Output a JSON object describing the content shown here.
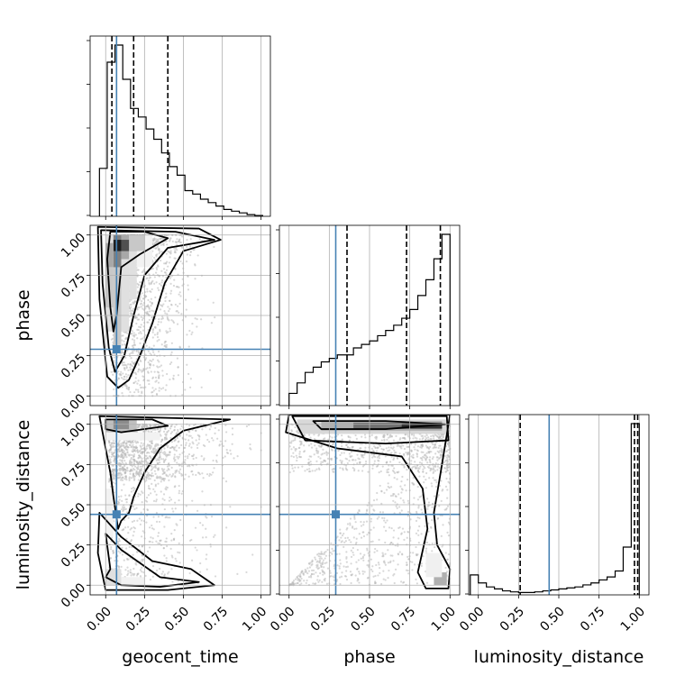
{
  "chart_data": {
    "type": "corner",
    "parameters": [
      "geocent_time",
      "phase",
      "luminosity_distance"
    ],
    "axis_labels": {
      "x": [
        "geocent_time",
        "phase",
        "luminosity_distance"
      ],
      "y": [
        "phase",
        "luminosity_distance"
      ]
    },
    "ticks": [
      "0.00",
      "0.25",
      "0.50",
      "0.75",
      "1.00"
    ],
    "tick_values": [
      0,
      0.25,
      0.5,
      0.75,
      1.0
    ],
    "axis_ranges": {
      "geocent_time": [
        -0.1,
        1.06
      ],
      "phase": [
        -0.06,
        1.06
      ],
      "luminosity_distance": [
        -0.06,
        1.06
      ]
    },
    "grid": true,
    "truth_color": "#4682b4",
    "truths": {
      "geocent_time": 0.07,
      "phase": 0.29,
      "luminosity_distance": 0.44
    },
    "quantiles": {
      "geocent_time": [
        0.04,
        0.18,
        0.4
      ],
      "phase": [
        0.36,
        0.73,
        0.94
      ],
      "luminosity_distance": [
        0.26,
        0.97,
        0.99
      ]
    },
    "histograms": {
      "geocent_time": {
        "edges": [
          -0.04,
          0.01,
          0.06,
          0.11,
          0.16,
          0.21,
          0.26,
          0.31,
          0.36,
          0.41,
          0.46,
          0.51,
          0.56,
          0.61,
          0.66,
          0.71,
          0.76,
          0.81,
          0.86,
          0.91,
          0.96,
          1.01
        ],
        "values": [
          0.28,
          0.9,
          1.0,
          0.8,
          0.63,
          0.58,
          0.51,
          0.45,
          0.37,
          0.29,
          0.24,
          0.15,
          0.13,
          0.1,
          0.08,
          0.06,
          0.04,
          0.03,
          0.02,
          0.01,
          0.005
        ]
      },
      "phase": {
        "edges": [
          0.0,
          0.05,
          0.1,
          0.15,
          0.2,
          0.25,
          0.3,
          0.35,
          0.4,
          0.45,
          0.5,
          0.55,
          0.6,
          0.65,
          0.7,
          0.75,
          0.8,
          0.85,
          0.9,
          0.95,
          1.0
        ],
        "values": [
          0.07,
          0.13,
          0.19,
          0.22,
          0.25,
          0.27,
          0.29,
          0.29,
          0.33,
          0.35,
          0.37,
          0.4,
          0.43,
          0.46,
          0.5,
          0.55,
          0.63,
          0.72,
          0.84,
          0.98
        ]
      },
      "luminosity_distance": {
        "edges": [
          -0.05,
          0.0,
          0.05,
          0.1,
          0.15,
          0.2,
          0.25,
          0.3,
          0.35,
          0.4,
          0.45,
          0.5,
          0.55,
          0.6,
          0.65,
          0.7,
          0.75,
          0.8,
          0.85,
          0.9,
          0.95,
          1.0
        ],
        "values": [
          0.1,
          0.06,
          0.04,
          0.03,
          0.02,
          0.015,
          0.012,
          0.012,
          0.015,
          0.02,
          0.025,
          0.03,
          0.035,
          0.04,
          0.05,
          0.06,
          0.075,
          0.09,
          0.12,
          0.24,
          0.86
        ]
      }
    }
  }
}
